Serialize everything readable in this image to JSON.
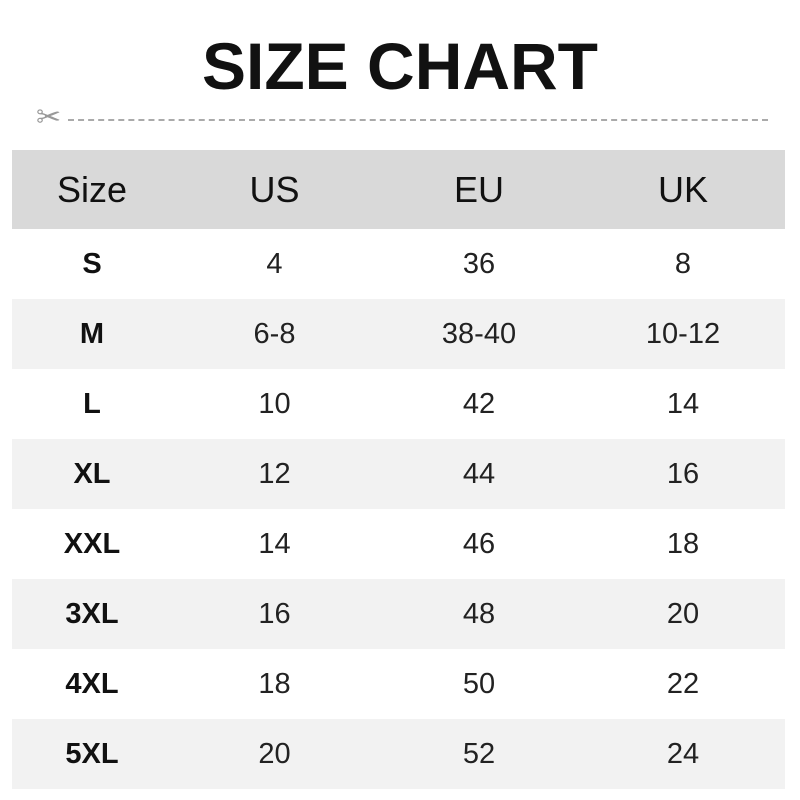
{
  "title": "SIZE CHART",
  "cut_icon": "scissors-icon",
  "colors": {
    "header_bg": "#d9d9d9",
    "alt_row_bg": "#f2f2f2"
  },
  "table": {
    "headers": [
      "Size",
      "US",
      "EU",
      "UK"
    ],
    "rows": [
      [
        "S",
        "4",
        "36",
        "8"
      ],
      [
        "M",
        "6-8",
        "38-40",
        "10-12"
      ],
      [
        "L",
        "10",
        "42",
        "14"
      ],
      [
        "XL",
        "12",
        "44",
        "16"
      ],
      [
        "XXL",
        "14",
        "46",
        "18"
      ],
      [
        "3XL",
        "16",
        "48",
        "20"
      ],
      [
        "4XL",
        "18",
        "50",
        "22"
      ],
      [
        "5XL",
        "20",
        "52",
        "24"
      ]
    ]
  }
}
